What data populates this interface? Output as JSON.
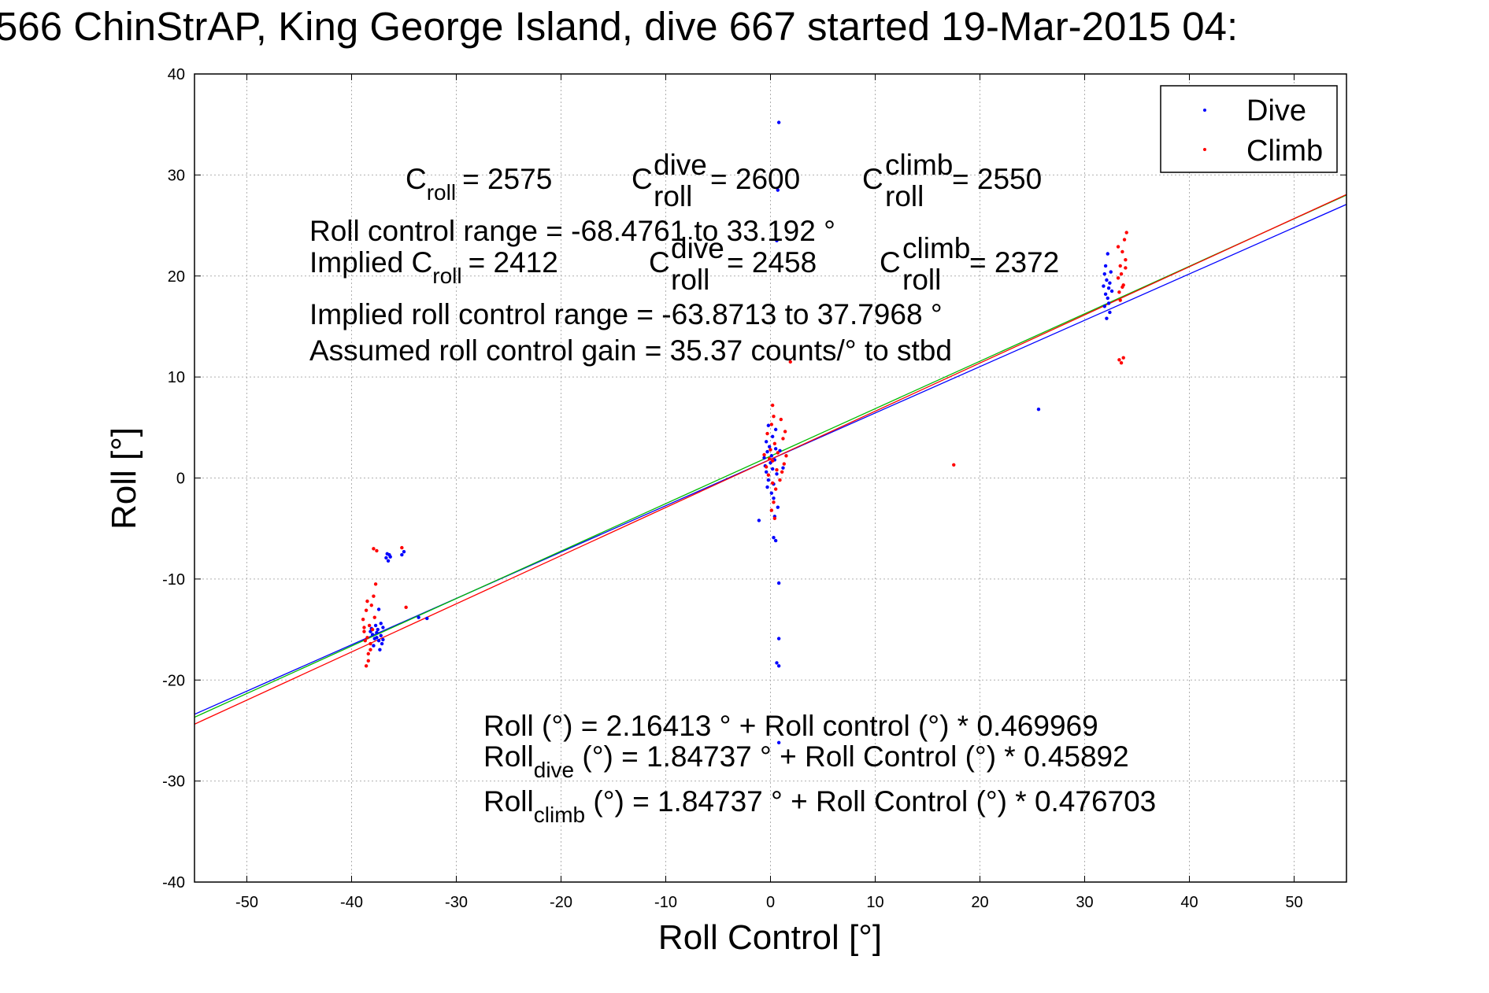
{
  "title": "566 ChinStrAP, King George Island, dive 667 started 19-Mar-2015 04:",
  "chart_data": {
    "type": "scatter",
    "xlabel": "Roll Control [°]",
    "ylabel": "Roll [°]",
    "xlim": [
      -55,
      55
    ],
    "ylim": [
      -40,
      40
    ],
    "xticks": [
      -50,
      -40,
      -30,
      -20,
      -10,
      0,
      10,
      20,
      30,
      40,
      50
    ],
    "yticks": [
      -40,
      -30,
      -20,
      -10,
      0,
      10,
      20,
      30,
      40
    ],
    "grid": true,
    "legend_position": "top-right",
    "series": [
      {
        "name": "Dive",
        "color": "#0000ff",
        "marker": "dot",
        "points": [
          [
            -38.2,
            -15.2
          ],
          [
            -38.0,
            -15.5
          ],
          [
            -37.8,
            -15.9
          ],
          [
            -37.6,
            -15.3
          ],
          [
            -37.4,
            -16.1
          ],
          [
            -37.2,
            -15.6
          ],
          [
            -37.0,
            -14.8
          ],
          [
            -37.1,
            -16.4
          ],
          [
            -37.3,
            -17.0
          ],
          [
            -37.5,
            -15.0
          ],
          [
            -37.7,
            -14.6
          ],
          [
            -37.9,
            -16.6
          ],
          [
            -38.1,
            -14.9
          ],
          [
            -37.6,
            -15.8
          ],
          [
            -37.2,
            -14.4
          ],
          [
            -37.0,
            -16.0
          ],
          [
            -37.4,
            -13.0
          ],
          [
            -36.6,
            -7.5
          ],
          [
            -36.7,
            -7.9
          ],
          [
            -36.5,
            -8.2
          ],
          [
            -36.4,
            -7.6
          ],
          [
            -36.3,
            -7.8
          ],
          [
            -35.0,
            -7.3
          ],
          [
            -35.2,
            -7.6
          ],
          [
            -33.6,
            -13.8
          ],
          [
            -32.8,
            -13.9
          ],
          [
            -0.6,
            2.0
          ],
          [
            -0.5,
            1.2
          ],
          [
            -0.4,
            0.6
          ],
          [
            -0.3,
            2.6
          ],
          [
            -0.2,
            -0.2
          ],
          [
            -0.1,
            3.1
          ],
          [
            0.0,
            1.5
          ],
          [
            0.1,
            2.2
          ],
          [
            0.2,
            0.9
          ],
          [
            0.3,
            -0.6
          ],
          [
            0.4,
            1.8
          ],
          [
            0.5,
            2.9
          ],
          [
            0.6,
            0.4
          ],
          [
            -0.4,
            3.6
          ],
          [
            0.2,
            4.1
          ],
          [
            0.3,
            -2.0
          ],
          [
            0.4,
            -3.8
          ],
          [
            0.3,
            -5.9
          ],
          [
            0.5,
            -6.2
          ],
          [
            0.7,
            -2.9
          ],
          [
            -0.3,
            -0.9
          ],
          [
            0.1,
            -1.5
          ],
          [
            -1.1,
            -4.2
          ],
          [
            1.2,
            1.0
          ],
          [
            0.9,
            2.7
          ],
          [
            0.8,
            -10.4
          ],
          [
            0.8,
            -15.9
          ],
          [
            0.8,
            -18.6
          ],
          [
            0.6,
            -18.3
          ],
          [
            0.8,
            35.2
          ],
          [
            0.7,
            28.5
          ],
          [
            0.6,
            23.5
          ],
          [
            0.8,
            -26.2
          ],
          [
            0.5,
            4.8
          ],
          [
            -0.2,
            5.2
          ],
          [
            31.9,
            17.0
          ],
          [
            32.0,
            18.2
          ],
          [
            32.1,
            19.6
          ],
          [
            32.2,
            17.8
          ],
          [
            32.3,
            18.8
          ],
          [
            32.4,
            16.4
          ],
          [
            32.5,
            20.4
          ],
          [
            31.8,
            19.0
          ],
          [
            32.0,
            21.0
          ],
          [
            32.2,
            22.2
          ],
          [
            32.1,
            15.8
          ],
          [
            32.3,
            17.3
          ],
          [
            32.6,
            18.5
          ],
          [
            31.9,
            20.2
          ],
          [
            32.4,
            19.3
          ],
          [
            25.6,
            6.8
          ]
        ]
      },
      {
        "name": "Climb",
        "color": "#ff0000",
        "marker": "dot",
        "points": [
          [
            -38.9,
            -14.0
          ],
          [
            -38.8,
            -15.2
          ],
          [
            -38.7,
            -16.1
          ],
          [
            -38.6,
            -13.1
          ],
          [
            -38.5,
            -15.8
          ],
          [
            -38.4,
            -17.4
          ],
          [
            -38.3,
            -14.6
          ],
          [
            -38.2,
            -16.4
          ],
          [
            -38.1,
            -12.6
          ],
          [
            -38.0,
            -15.0
          ],
          [
            -37.9,
            -11.7
          ],
          [
            -37.8,
            -13.8
          ],
          [
            -37.7,
            -10.5
          ],
          [
            -38.6,
            -18.6
          ],
          [
            -38.4,
            -18.1
          ],
          [
            -38.2,
            -17.0
          ],
          [
            -38.8,
            -14.8
          ],
          [
            -38.5,
            -12.2
          ],
          [
            -37.9,
            -7.0
          ],
          [
            -37.6,
            -7.2
          ],
          [
            -35.2,
            -6.9
          ],
          [
            -34.8,
            -12.8
          ],
          [
            -0.6,
            2.3
          ],
          [
            -0.4,
            1.1
          ],
          [
            -0.2,
            0.3
          ],
          [
            0.0,
            2.8
          ],
          [
            0.2,
            1.7
          ],
          [
            0.4,
            3.4
          ],
          [
            0.6,
            0.8
          ],
          [
            -0.3,
            4.4
          ],
          [
            0.1,
            5.3
          ],
          [
            0.3,
            6.1
          ],
          [
            0.2,
            7.2
          ],
          [
            0.5,
            -1.1
          ],
          [
            0.3,
            -2.4
          ],
          [
            0.1,
            -3.2
          ],
          [
            0.4,
            -4.0
          ],
          [
            0.2,
            -0.5
          ],
          [
            -0.1,
            1.9
          ],
          [
            0.7,
            2.5
          ],
          [
            1.2,
            3.9
          ],
          [
            1.3,
            1.4
          ],
          [
            1.5,
            2.2
          ],
          [
            1.4,
            4.6
          ],
          [
            1.1,
            0.6
          ],
          [
            0.9,
            -0.2
          ],
          [
            1.0,
            5.8
          ],
          [
            1.9,
            11.5
          ],
          [
            17.5,
            1.3
          ],
          [
            33.2,
            19.8
          ],
          [
            33.3,
            18.4
          ],
          [
            33.4,
            21.0
          ],
          [
            33.5,
            20.2
          ],
          [
            33.6,
            22.4
          ],
          [
            33.7,
            19.1
          ],
          [
            33.8,
            23.6
          ],
          [
            33.9,
            20.8
          ],
          [
            34.0,
            24.3
          ],
          [
            33.4,
            17.6
          ],
          [
            33.6,
            18.9
          ],
          [
            33.9,
            21.6
          ],
          [
            33.3,
            11.7
          ],
          [
            33.5,
            11.4
          ],
          [
            33.7,
            11.9
          ],
          [
            33.2,
            22.9
          ]
        ]
      }
    ],
    "fit_lines": [
      {
        "color": "#0000ff",
        "intercept": 1.84737,
        "slope": 0.45892
      },
      {
        "color": "#00bb00",
        "intercept": 2.16413,
        "slope": 0.469969
      },
      {
        "color": "#ff0000",
        "intercept": 1.84737,
        "slope": 0.476703
      }
    ],
    "annotations": {
      "row1": {
        "c_roll_base": "C",
        "c_roll_sub": "roll",
        "c_roll_value": "= 2575",
        "c_dive_base": "C",
        "c_dive_sup": "dive",
        "c_dive_sub": "roll",
        "c_dive_value": "= 2600",
        "c_climb_base": "C",
        "c_climb_sup": "climb",
        "c_climb_sub": "roll",
        "c_climb_value": "= 2550"
      },
      "range_line": "Roll control range = -68.4761 to 33.192 °",
      "row2": {
        "implied_prefix": "Implied C",
        "implied_sub": "roll",
        "implied_value": "= 2412",
        "c_dive_base": "C",
        "c_dive_sup": "dive",
        "c_dive_sub": "roll",
        "c_dive_value": "= 2458",
        "c_climb_base": "C",
        "c_climb_sup": "climb",
        "c_climb_sub": "roll",
        "c_climb_value": "= 2372"
      },
      "implied_range_line": "Implied roll control range = -63.8713 to 37.7968 °",
      "gain_line": "Assumed roll control gain = 35.37 counts/° to stbd",
      "fit1": "Roll (°) = 2.16413 ° + Roll control (°) * 0.469969",
      "fit2_base": "Roll",
      "fit2_sub": "dive",
      "fit2_rest": " (°) = 1.84737 ° + Roll Control (°) * 0.45892",
      "fit3_base": "Roll",
      "fit3_sub": "climb",
      "fit3_rest": " (°) = 1.84737 ° + Roll Control (°) * 0.476703"
    }
  }
}
